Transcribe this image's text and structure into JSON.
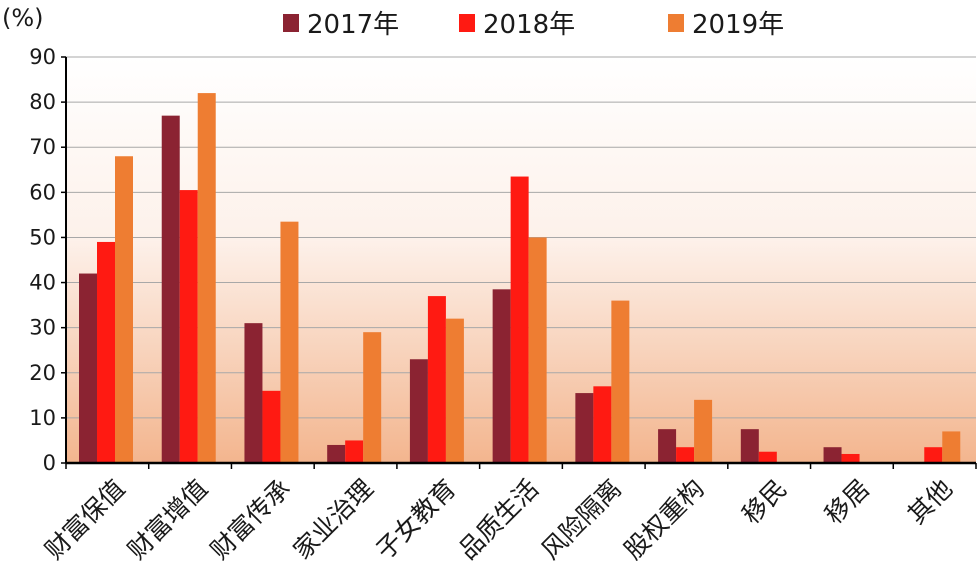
{
  "chart_data": {
    "type": "bar",
    "unit_label": "(%)",
    "categories": [
      "财富保值",
      "财富增值",
      "财富传承",
      "家业治理",
      "子女教育",
      "品质生活",
      "风险隔离",
      "股权重构",
      "移民",
      "移居",
      "其他"
    ],
    "series": [
      {
        "name": "2017年",
        "color": "#8b2332",
        "values": [
          42,
          77,
          31,
          4,
          23,
          38.5,
          15.5,
          7.5,
          7.5,
          3.5,
          0
        ]
      },
      {
        "name": "2018年",
        "color": "#ff1a12",
        "values": [
          49,
          60.5,
          16,
          5,
          37,
          63.5,
          17,
          3.5,
          2.5,
          2,
          3.5
        ]
      },
      {
        "name": "2019年",
        "color": "#ee7d32",
        "values": [
          68,
          82,
          53.5,
          29,
          32,
          50,
          36,
          14,
          0,
          0,
          7
        ]
      }
    ],
    "ylim": [
      0,
      90
    ],
    "yticks": [
      0,
      10,
      20,
      30,
      40,
      50,
      60,
      70,
      80,
      90
    ],
    "grid": true,
    "legend_position": "top"
  }
}
